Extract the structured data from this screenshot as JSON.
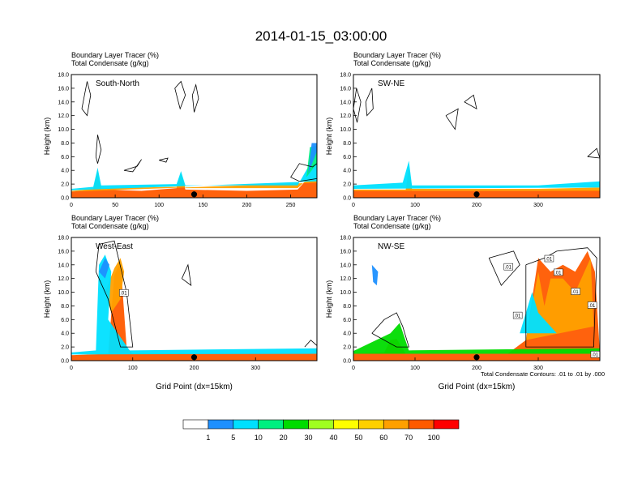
{
  "title": "2014-01-15_03:00:00",
  "header_line1": "Boundary Layer Tracer   (%)",
  "header_line2": "Total Condensate   (g/kg)",
  "ylabel": "Height (km)",
  "xlabel": "Grid Point (dx=15km)",
  "contour_note": "Total Condensate Contours: .01 to .01 by .000",
  "colorbar": {
    "colors": [
      "#ffffff",
      "#1e90ff",
      "#00e0ff",
      "#00f080",
      "#00dc00",
      "#a0ff20",
      "#ffff00",
      "#ffd000",
      "#ffa000",
      "#ff5a00",
      "#ff0000"
    ],
    "labels": [
      "1",
      "5",
      "10",
      "20",
      "30",
      "40",
      "50",
      "60",
      "70",
      "100"
    ]
  },
  "chart_data": [
    {
      "type": "heatmap",
      "panel_label": "South-North",
      "ylim": [
        0,
        18
      ],
      "yticks": [
        "0.0",
        "2.0",
        "4.0",
        "6.0",
        "8.0",
        "10.0",
        "12.0",
        "14.0",
        "16.0",
        "18.0"
      ],
      "xlim": [
        0,
        280
      ],
      "xticks": [
        "0",
        "50",
        "100",
        "150",
        "200",
        "250"
      ],
      "xtick_values": [
        0,
        50,
        100,
        150,
        200,
        250
      ],
      "marker_x": 140
    },
    {
      "type": "heatmap",
      "panel_label": "SW-NE",
      "ylim": [
        0,
        18
      ],
      "yticks": [
        "0.0",
        "2.0",
        "4.0",
        "6.0",
        "8.0",
        "10.0",
        "12.0",
        "14.0",
        "16.0",
        "18.0"
      ],
      "xlim": [
        0,
        400
      ],
      "xticks": [
        "0",
        "100",
        "200",
        "300"
      ],
      "xtick_values": [
        0,
        100,
        200,
        300
      ],
      "marker_x": 200
    },
    {
      "type": "heatmap",
      "panel_label": "West-East",
      "ylim": [
        0,
        18
      ],
      "yticks": [
        "0.0",
        "2.0",
        "4.0",
        "6.0",
        "8.0",
        "10.0",
        "12.0",
        "14.0",
        "16.0",
        "18.0"
      ],
      "xlim": [
        0,
        400
      ],
      "xticks": [
        "0",
        "100",
        "200",
        "300"
      ],
      "xtick_values": [
        0,
        100,
        200,
        300
      ],
      "marker_x": 200,
      "contour_labels": [
        ".01"
      ]
    },
    {
      "type": "heatmap",
      "panel_label": "NW-SE",
      "ylim": [
        0,
        18
      ],
      "yticks": [
        "0.0",
        "2.0",
        "4.0",
        "6.0",
        "8.0",
        "10.0",
        "12.0",
        "14.0",
        "16.0",
        "18.0"
      ],
      "xlim": [
        0,
        400
      ],
      "xticks": [
        "0",
        "100",
        "200",
        "300"
      ],
      "xtick_values": [
        0,
        100,
        200,
        300
      ],
      "marker_x": 200,
      "contour_labels": [
        ".01",
        ".01",
        ".01",
        ".01",
        ".01",
        ".01",
        ".01"
      ]
    }
  ]
}
